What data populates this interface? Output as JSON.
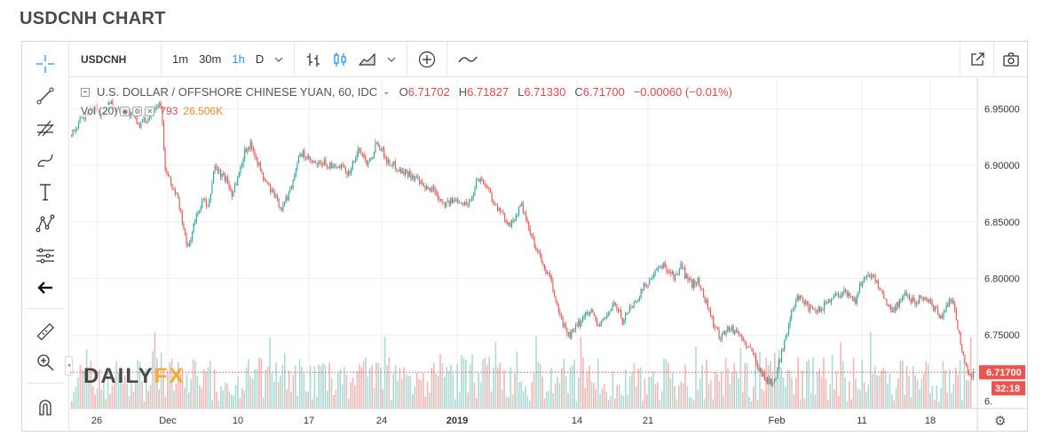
{
  "page_title": "USDCNH CHART",
  "toolbar": {
    "symbol": "USDCNH",
    "intervals": [
      "1m",
      "30m",
      "1h",
      "D"
    ],
    "active_interval": "1h"
  },
  "legend": {
    "title": "U.S. DOLLAR / OFFSHORE CHINESE YUAN, 60, IDC",
    "open_label": "O",
    "open": "6.71702",
    "high_label": "H",
    "high": "6.71827",
    "low_label": "L",
    "low": "6.71330",
    "close_label": "C",
    "close": "6.71700",
    "change": "−0.00060 (−0.01%)",
    "volume_name": "Vol (20)",
    "volume_value": "793",
    "volume_ma": "26.506K"
  },
  "watermark": {
    "part1": "DAILY",
    "part2": "FX"
  },
  "price_badge": "6.71700",
  "countdown_badge": "32:18",
  "partial_axis_label": "6.",
  "colors": {
    "up": "#26a69a",
    "down": "#ef5350",
    "vol_up": "#9fd3cc",
    "vol_down": "#f3a9a7",
    "price_line": "#ef5350",
    "accent": "#2196f3"
  },
  "chart_data": {
    "type": "candlestick",
    "title": "U.S. DOLLAR / OFFSHORE CHINESE YUAN, 60, IDC",
    "ylim": [
      6.685,
      6.977
    ],
    "yticks": [
      6.95,
      6.9,
      6.85,
      6.8,
      6.75
    ],
    "ytick_labels": [
      "6.95000",
      "6.90000",
      "6.85000",
      "6.80000",
      "6.75000"
    ],
    "x_tick_labels": [
      "26",
      "Dec",
      "10",
      "17",
      "24",
      "2019",
      "14",
      "21",
      "Feb",
      "11",
      "18"
    ],
    "last_price": 6.717,
    "grid": true,
    "path_points": [
      [
        0,
        6.926
      ],
      [
        10,
        6.938
      ],
      [
        18,
        6.945
      ],
      [
        28,
        6.951
      ],
      [
        35,
        6.944
      ],
      [
        45,
        6.957
      ],
      [
        52,
        6.948
      ],
      [
        60,
        6.95
      ],
      [
        70,
        6.944
      ],
      [
        78,
        6.936
      ],
      [
        88,
        6.942
      ],
      [
        95,
        6.953
      ],
      [
        102,
        6.955
      ],
      [
        106,
        6.898
      ],
      [
        112,
        6.885
      ],
      [
        120,
        6.872
      ],
      [
        125,
        6.855
      ],
      [
        130,
        6.83
      ],
      [
        133,
        6.828
      ],
      [
        138,
        6.845
      ],
      [
        145,
        6.862
      ],
      [
        150,
        6.87
      ],
      [
        155,
        6.86
      ],
      [
        162,
        6.9
      ],
      [
        168,
        6.893
      ],
      [
        175,
        6.888
      ],
      [
        182,
        6.875
      ],
      [
        190,
        6.893
      ],
      [
        197,
        6.915
      ],
      [
        204,
        6.918
      ],
      [
        210,
        6.905
      ],
      [
        216,
        6.89
      ],
      [
        222,
        6.883
      ],
      [
        230,
        6.872
      ],
      [
        238,
        6.862
      ],
      [
        242,
        6.868
      ],
      [
        250,
        6.885
      ],
      [
        256,
        6.905
      ],
      [
        262,
        6.91
      ],
      [
        270,
        6.903
      ],
      [
        278,
        6.9
      ],
      [
        286,
        6.902
      ],
      [
        295,
        6.898
      ],
      [
        305,
        6.898
      ],
      [
        313,
        6.893
      ],
      [
        320,
        6.905
      ],
      [
        326,
        6.915
      ],
      [
        333,
        6.902
      ],
      [
        340,
        6.91
      ],
      [
        345,
        6.922
      ],
      [
        350,
        6.915
      ],
      [
        358,
        6.902
      ],
      [
        365,
        6.9
      ],
      [
        372,
        6.895
      ],
      [
        380,
        6.893
      ],
      [
        388,
        6.889
      ],
      [
        395,
        6.882
      ],
      [
        402,
        6.878
      ],
      [
        408,
        6.88
      ],
      [
        415,
        6.872
      ],
      [
        422,
        6.866
      ],
      [
        430,
        6.868
      ],
      [
        438,
        6.87
      ],
      [
        445,
        6.865
      ],
      [
        452,
        6.87
      ],
      [
        458,
        6.89
      ],
      [
        464,
        6.886
      ],
      [
        470,
        6.88
      ],
      [
        478,
        6.865
      ],
      [
        484,
        6.858
      ],
      [
        490,
        6.852
      ],
      [
        497,
        6.848
      ],
      [
        503,
        6.858
      ],
      [
        508,
        6.865
      ],
      [
        514,
        6.848
      ],
      [
        520,
        6.835
      ],
      [
        527,
        6.822
      ],
      [
        534,
        6.808
      ],
      [
        540,
        6.8
      ],
      [
        545,
        6.785
      ],
      [
        550,
        6.77
      ],
      [
        556,
        6.758
      ],
      [
        562,
        6.748
      ],
      [
        568,
        6.755
      ],
      [
        575,
        6.762
      ],
      [
        582,
        6.772
      ],
      [
        588,
        6.77
      ],
      [
        594,
        6.758
      ],
      [
        600,
        6.762
      ],
      [
        606,
        6.77
      ],
      [
        612,
        6.778
      ],
      [
        618,
        6.77
      ],
      [
        622,
        6.762
      ],
      [
        628,
        6.772
      ],
      [
        635,
        6.778
      ],
      [
        642,
        6.787
      ],
      [
        648,
        6.795
      ],
      [
        655,
        6.8
      ],
      [
        662,
        6.808
      ],
      [
        668,
        6.812
      ],
      [
        675,
        6.806
      ],
      [
        682,
        6.8
      ],
      [
        688,
        6.812
      ],
      [
        694,
        6.8
      ],
      [
        700,
        6.795
      ],
      [
        706,
        6.798
      ],
      [
        713,
        6.786
      ],
      [
        720,
        6.77
      ],
      [
        726,
        6.755
      ],
      [
        732,
        6.748
      ],
      [
        738,
        6.755
      ],
      [
        745,
        6.755
      ],
      [
        752,
        6.752
      ],
      [
        758,
        6.745
      ],
      [
        764,
        6.738
      ],
      [
        770,
        6.732
      ],
      [
        776,
        6.72
      ],
      [
        782,
        6.712
      ],
      [
        788,
        6.708
      ],
      [
        794,
        6.71
      ],
      [
        800,
        6.732
      ],
      [
        806,
        6.75
      ],
      [
        812,
        6.768
      ],
      [
        818,
        6.785
      ],
      [
        825,
        6.782
      ],
      [
        832,
        6.772
      ],
      [
        840,
        6.77
      ],
      [
        848,
        6.775
      ],
      [
        855,
        6.782
      ],
      [
        862,
        6.785
      ],
      [
        870,
        6.788
      ],
      [
        878,
        6.785
      ],
      [
        885,
        6.78
      ],
      [
        890,
        6.795
      ],
      [
        898,
        6.805
      ],
      [
        905,
        6.8
      ],
      [
        912,
        6.792
      ],
      [
        918,
        6.78
      ],
      [
        924,
        6.772
      ],
      [
        930,
        6.775
      ],
      [
        938,
        6.786
      ],
      [
        945,
        6.782
      ],
      [
        952,
        6.78
      ],
      [
        960,
        6.785
      ],
      [
        968,
        6.778
      ],
      [
        975,
        6.772
      ],
      [
        982,
        6.765
      ],
      [
        988,
        6.778
      ],
      [
        994,
        6.782
      ],
      [
        998,
        6.765
      ],
      [
        1004,
        6.735
      ],
      [
        1010,
        6.72
      ],
      [
        1015,
        6.715
      ],
      [
        1018,
        6.717
      ]
    ],
    "volume_note": "Vol (20) histogram along bottom of pane"
  }
}
